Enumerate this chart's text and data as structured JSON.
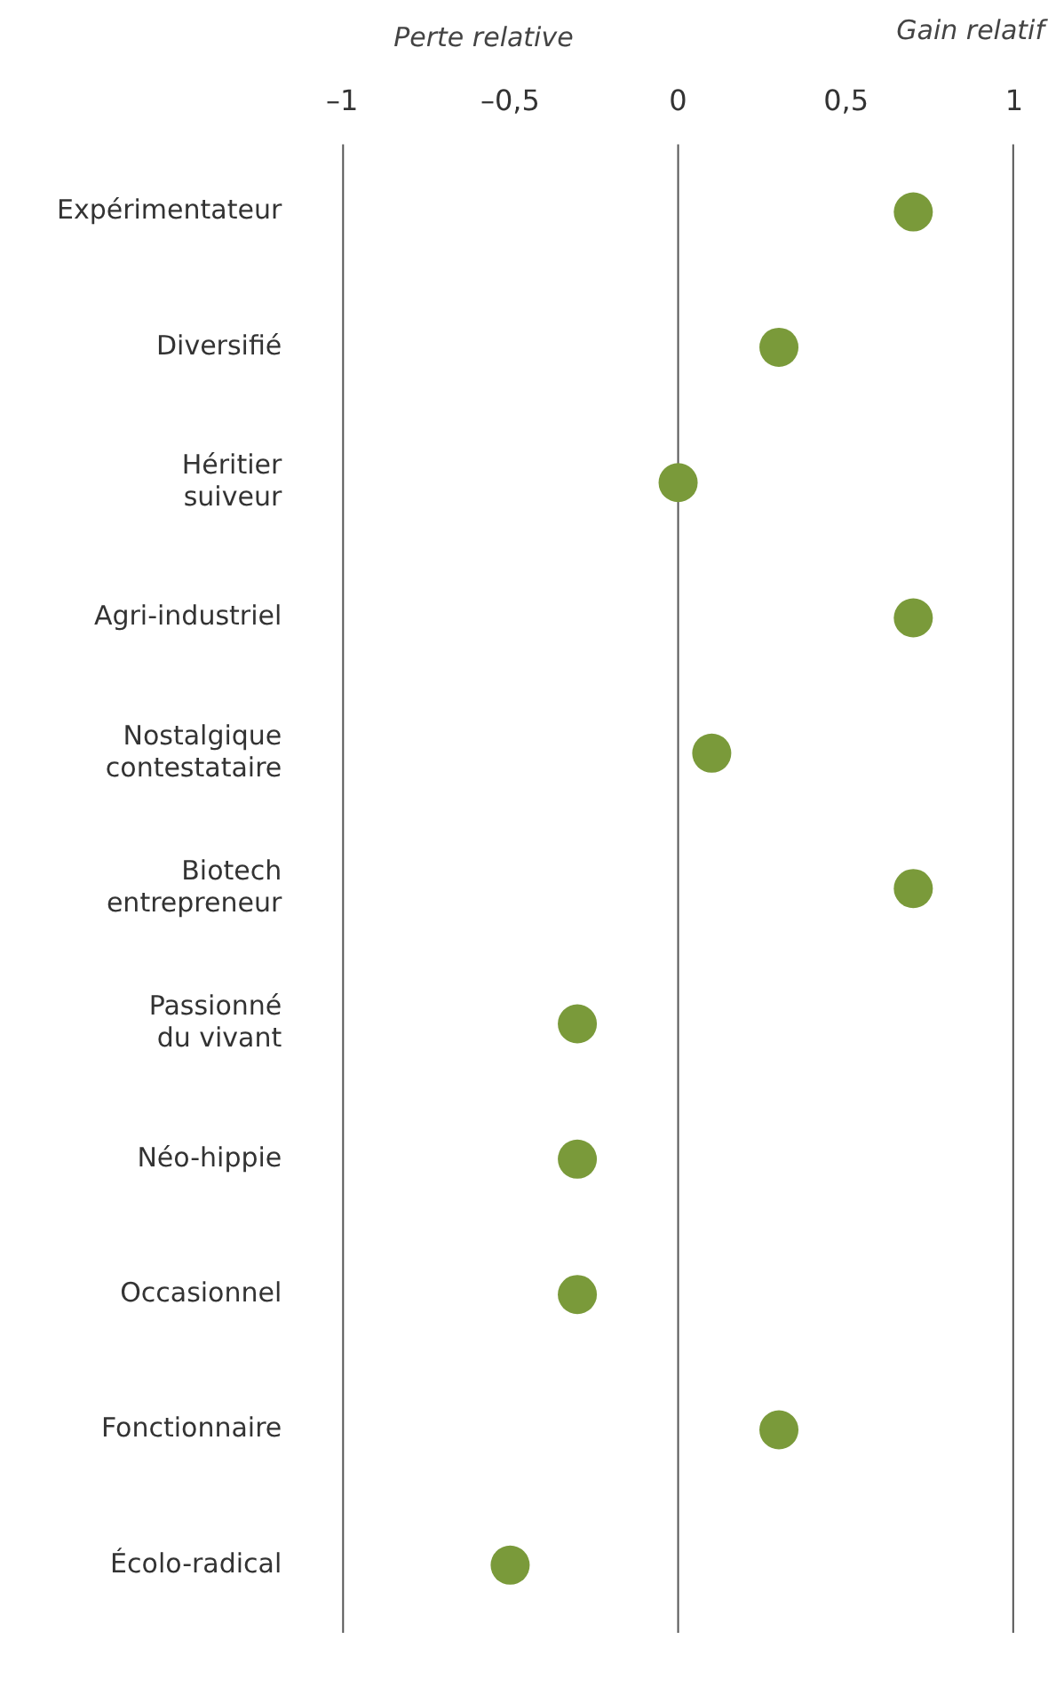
{
  "chart_data": {
    "type": "scatter",
    "orientation": "horizontal",
    "categories": [
      "Expérimentateur",
      "Diversifié",
      "Héritier suiveur",
      "Agri-industriel",
      "Nostalgique contestataire",
      "Biotech entrepreneur",
      "Passionné du vivant",
      "Néo-hippie",
      "Occasionnel",
      "Fonctionnaire",
      "Écolo-radical"
    ],
    "series": [
      {
        "color": "#7a9a3a",
        "values": [
          0.7,
          0.3,
          0,
          0.7,
          0.1,
          0.7,
          -0.3,
          -0.3,
          -0.3,
          0.3,
          -0.5
        ]
      }
    ],
    "xlim": [
      -1,
      1
    ],
    "xticks": [
      {
        "value": -1,
        "label": "–1"
      },
      {
        "value": -0.5,
        "label": "–0,5"
      },
      0,
      {
        "value": 0.5,
        "label": "0,5"
      },
      1
    ],
    "ref_lines": [
      {
        "axis": "x",
        "value": 0,
        "color": "#555555"
      }
    ],
    "annotations": [
      "Perte relative",
      "Gain relatif"
    ],
    "grid": false,
    "legend": false,
    "marker": "circle"
  }
}
